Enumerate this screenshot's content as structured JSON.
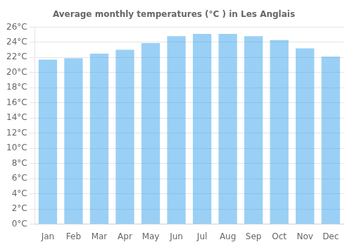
{
  "chart_data": {
    "type": "bar",
    "title": "Average monthly temperatures (°C ) in Les Anglais",
    "categories": [
      "Jan",
      "Feb",
      "Mar",
      "Apr",
      "May",
      "Jun",
      "Jul",
      "Aug",
      "Sep",
      "Oct",
      "Nov",
      "Dec"
    ],
    "values": [
      21.7,
      21.9,
      22.5,
      23.0,
      23.9,
      24.8,
      25.1,
      25.1,
      24.8,
      24.3,
      23.2,
      22.1
    ],
    "ylim": [
      0,
      26
    ],
    "yticks": [
      {
        "value": 0,
        "label": "0°C"
      },
      {
        "value": 2,
        "label": "2°C"
      },
      {
        "value": 4,
        "label": "4°C"
      },
      {
        "value": 6,
        "label": "6°C"
      },
      {
        "value": 8,
        "label": "8°C"
      },
      {
        "value": 10,
        "label": "10°C"
      },
      {
        "value": 12,
        "label": "12°C"
      },
      {
        "value": 14,
        "label": "14°C"
      },
      {
        "value": 16,
        "label": "16°C"
      },
      {
        "value": 18,
        "label": "18°C"
      },
      {
        "value": 20,
        "label": "20°C"
      },
      {
        "value": 22,
        "label": "22°C"
      },
      {
        "value": 24,
        "label": "24°C"
      },
      {
        "value": 26,
        "label": "26°C"
      }
    ],
    "grid": true
  }
}
